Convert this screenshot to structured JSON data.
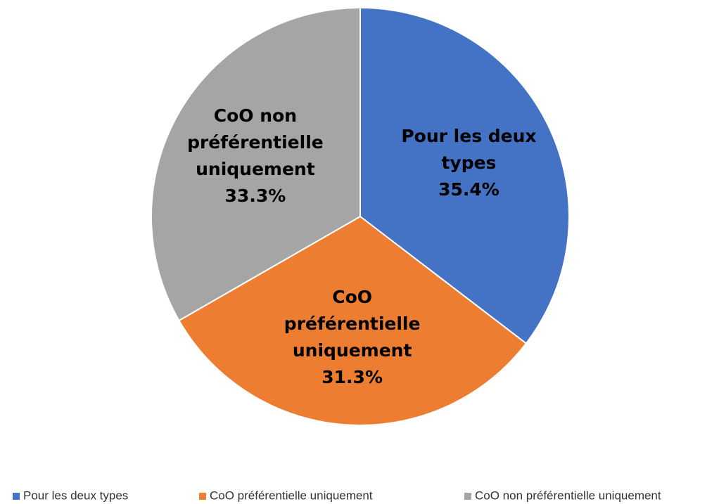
{
  "chart_data": {
    "type": "pie",
    "categories": [
      "Pour les deux types",
      "CoO préférentielle uniquement",
      "CoO non préférentielle uniquement"
    ],
    "values": [
      35.4,
      31.3,
      33.3
    ],
    "value_labels": [
      "35.4%",
      "31.3%",
      "33.3%"
    ],
    "colors": [
      "#4472c4",
      "#ed7d31",
      "#a5a5a5"
    ],
    "legend": "bottom"
  }
}
